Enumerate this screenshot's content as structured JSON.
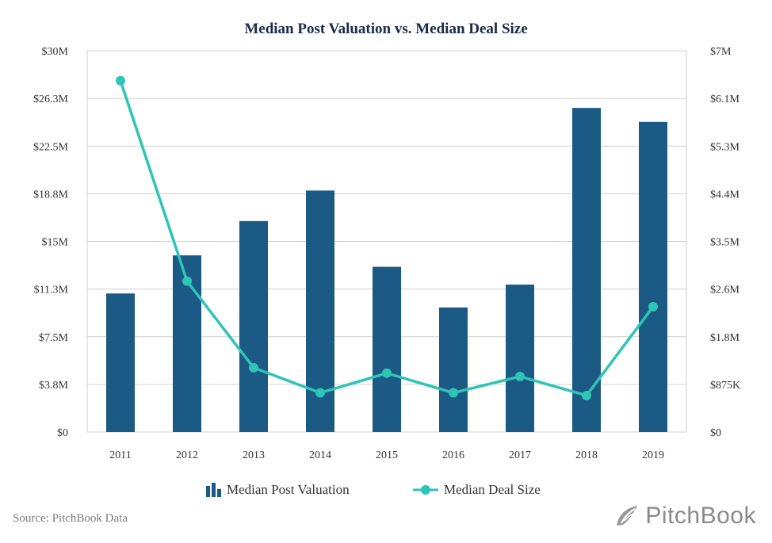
{
  "chart_data": {
    "type": "bar+line",
    "title": "Median Post Valuation vs. Median Deal Size",
    "categories": [
      "2011",
      "2012",
      "2013",
      "2014",
      "2015",
      "2016",
      "2017",
      "2018",
      "2019"
    ],
    "y_left": {
      "ylim": [
        0,
        30
      ],
      "ticks": [
        0,
        3.75,
        7.5,
        11.25,
        15,
        18.75,
        22.5,
        26.25,
        30
      ],
      "tick_labels": [
        "$0",
        "$3.8M",
        "$7.5M",
        "$11.3M",
        "$15M",
        "$18.8M",
        "$22.5M",
        "$26.3M",
        "$30M"
      ]
    },
    "y_right": {
      "ylim": [
        0,
        7
      ],
      "ticks": [
        0,
        0.875,
        1.75,
        2.625,
        3.5,
        4.375,
        5.25,
        6.125,
        7
      ],
      "tick_labels": [
        "$0",
        "$875K",
        "$1.8M",
        "$2.6M",
        "$3.5M",
        "$4.4M",
        "$5.3M",
        "$6.1M",
        "$7M"
      ]
    },
    "series": [
      {
        "name": "Median Post Valuation",
        "type": "bar",
        "axis": "left",
        "color": "#1b5a85",
        "values": [
          10.9,
          13.9,
          16.6,
          19.0,
          13.0,
          9.8,
          11.6,
          25.5,
          24.4
        ]
      },
      {
        "name": "Median Deal Size",
        "type": "line",
        "axis": "right",
        "color": "#2ec4b6",
        "values": [
          6.45,
          2.77,
          1.18,
          0.72,
          1.08,
          0.72,
          1.02,
          0.67,
          2.3
        ]
      }
    ],
    "grid": true,
    "legend": "bottom"
  },
  "footer": {
    "source": "Source: PitchBook Data",
    "brand": "PitchBook"
  },
  "icons": {
    "brand_logo": "pitchbook-leaf-logo"
  }
}
